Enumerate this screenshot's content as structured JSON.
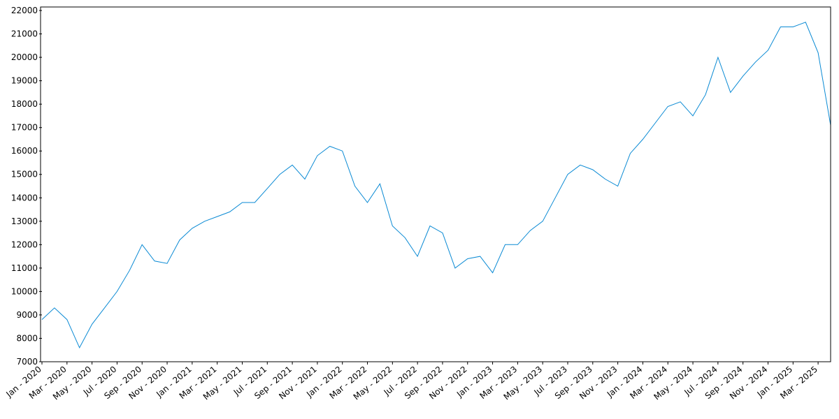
{
  "chart_data": {
    "type": "line",
    "x": [
      "2020-01",
      "2020-02",
      "2020-03",
      "2020-04",
      "2020-05",
      "2020-06",
      "2020-07",
      "2020-08",
      "2020-09",
      "2020-10",
      "2020-11",
      "2020-12",
      "2021-01",
      "2021-02",
      "2021-03",
      "2021-04",
      "2021-05",
      "2021-06",
      "2021-07",
      "2021-08",
      "2021-09",
      "2021-10",
      "2021-11",
      "2021-12",
      "2022-01",
      "2022-02",
      "2022-03",
      "2022-04",
      "2022-05",
      "2022-06",
      "2022-07",
      "2022-08",
      "2022-09",
      "2022-10",
      "2022-11",
      "2022-12",
      "2023-01",
      "2023-02",
      "2023-03",
      "2023-04",
      "2023-05",
      "2023-06",
      "2023-07",
      "2023-08",
      "2023-09",
      "2023-10",
      "2023-11",
      "2023-12",
      "2024-01",
      "2024-02",
      "2024-03",
      "2024-04",
      "2024-05",
      "2024-06",
      "2024-07",
      "2024-08",
      "2024-09",
      "2024-10",
      "2024-11",
      "2024-12",
      "2025-01",
      "2025-02",
      "2025-03",
      "2025-04"
    ],
    "values": [
      8800,
      9300,
      8800,
      7600,
      8600,
      9300,
      10000,
      10900,
      12000,
      11300,
      11200,
      12200,
      12700,
      13000,
      13200,
      13400,
      13800,
      13800,
      14400,
      15000,
      15400,
      14800,
      15800,
      16200,
      16000,
      14500,
      13800,
      14600,
      12800,
      12300,
      11500,
      12800,
      12500,
      11000,
      11400,
      11500,
      10800,
      12000,
      12000,
      12600,
      13000,
      14000,
      15000,
      15400,
      15200,
      14800,
      14500,
      15900,
      16500,
      17200,
      17900,
      18100,
      17500,
      18400,
      20000,
      18500,
      19200,
      19800,
      20300,
      21300,
      21300,
      21500,
      20200,
      17100
    ],
    "color": "#0a8ad4",
    "xlim": [
      "2020-01",
      "2025-04"
    ],
    "xticks": [
      {
        "value": "2020-01",
        "label": "Jan - 2020"
      },
      {
        "value": "2020-03",
        "label": "Mar - 2020"
      },
      {
        "value": "2020-05",
        "label": "May - 2020"
      },
      {
        "value": "2020-07",
        "label": "Jul - 2020"
      },
      {
        "value": "2020-09",
        "label": "Sep - 2020"
      },
      {
        "value": "2020-11",
        "label": "Nov - 2020"
      },
      {
        "value": "2021-01",
        "label": "Jan - 2021"
      },
      {
        "value": "2021-03",
        "label": "Mar - 2021"
      },
      {
        "value": "2021-05",
        "label": "May - 2021"
      },
      {
        "value": "2021-07",
        "label": "Jul - 2021"
      },
      {
        "value": "2021-09",
        "label": "Sep - 2021"
      },
      {
        "value": "2021-11",
        "label": "Nov - 2021"
      },
      {
        "value": "2022-01",
        "label": "Jan - 2022"
      },
      {
        "value": "2022-03",
        "label": "Mar - 2022"
      },
      {
        "value": "2022-05",
        "label": "May - 2022"
      },
      {
        "value": "2022-07",
        "label": "Jul - 2022"
      },
      {
        "value": "2022-09",
        "label": "Sep - 2022"
      },
      {
        "value": "2022-11",
        "label": "Nov - 2022"
      },
      {
        "value": "2023-01",
        "label": "Jan - 2023"
      },
      {
        "value": "2023-03",
        "label": "Mar - 2023"
      },
      {
        "value": "2023-05",
        "label": "May - 2023"
      },
      {
        "value": "2023-07",
        "label": "Jul - 2023"
      },
      {
        "value": "2023-09",
        "label": "Sep - 2023"
      },
      {
        "value": "2023-11",
        "label": "Nov - 2023"
      },
      {
        "value": "2024-01",
        "label": "Jan - 2024"
      },
      {
        "value": "2024-03",
        "label": "Mar - 2024"
      },
      {
        "value": "2024-05",
        "label": "May - 2024"
      },
      {
        "value": "2024-07",
        "label": "Jul - 2024"
      },
      {
        "value": "2024-09",
        "label": "Sep - 2024"
      },
      {
        "value": "2024-11",
        "label": "Nov - 2024"
      },
      {
        "value": "2025-01",
        "label": "Jan - 2025"
      },
      {
        "value": "2025-03",
        "label": "Mar - 2025"
      }
    ],
    "ylim": [
      7000,
      22150
    ],
    "yticks": [
      7000,
      8000,
      9000,
      10000,
      11000,
      12000,
      13000,
      14000,
      15000,
      16000,
      17000,
      18000,
      19000,
      20000,
      21000,
      22000
    ],
    "grid": false
  }
}
